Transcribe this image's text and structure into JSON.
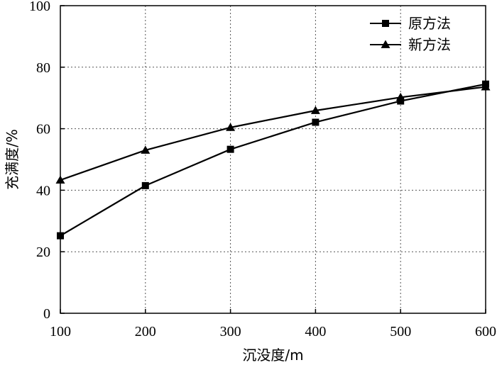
{
  "chart_data": {
    "type": "line",
    "title": "",
    "xlabel": "沉没度/m",
    "ylabel": "充满度/%",
    "xlim": [
      100,
      600
    ],
    "ylim": [
      0,
      100
    ],
    "x_ticks": [
      100,
      200,
      300,
      400,
      500,
      600
    ],
    "y_ticks": [
      0,
      20,
      40,
      60,
      80,
      100
    ],
    "x_tick_labels": [
      "100",
      "200",
      "300",
      "400",
      "500",
      "600"
    ],
    "y_tick_labels": [
      "0",
      "20",
      "40",
      "60",
      "80",
      "100"
    ],
    "grid": true,
    "legend_position": "top-right",
    "x": [
      100,
      200,
      300,
      400,
      500,
      600
    ],
    "series": [
      {
        "name": "原方法",
        "marker": "square",
        "values": [
          25.2,
          41.5,
          53.3,
          62.1,
          69.0,
          74.5
        ]
      },
      {
        "name": "新方法",
        "marker": "triangle",
        "values": [
          43.3,
          53.0,
          60.4,
          65.9,
          70.2,
          73.6
        ]
      }
    ],
    "colors": {
      "line": "#000000",
      "grid": "#555555",
      "background": "#ffffff"
    }
  }
}
